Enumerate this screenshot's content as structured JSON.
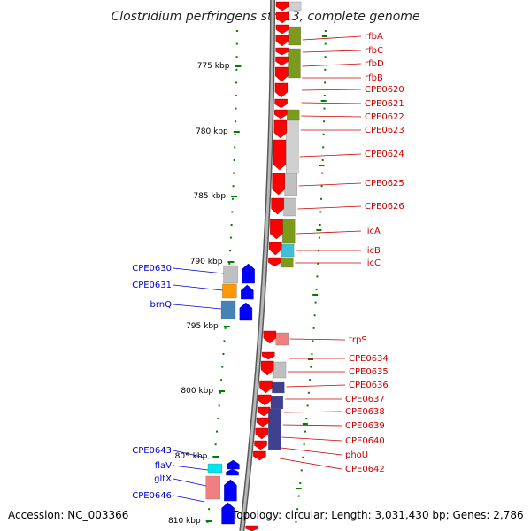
{
  "title": "Clostridium perfringens str. 13, complete genome",
  "footer": {
    "accession": "Accession: NC_003366",
    "summary": "Topology: circular; Length: 3,031,430 bp; Genes: 2,786"
  },
  "colors": {
    "forward_gene": "#ff0000",
    "reverse_gene": "#0000ff",
    "forward_label": "#cc0000",
    "reverse_label": "#0000cc",
    "tick": "#008000",
    "backbone": "#909090"
  },
  "scale_labels": [
    "775 kbp",
    "780 kbp",
    "785 kbp",
    "790 kbp",
    "795 kbp",
    "800 kbp",
    "805 kbp",
    "810 kbp"
  ],
  "forward_genes": [
    "rfbA",
    "rfbC",
    "rfbD",
    "rfbB",
    "CPE0620",
    "CPE0621",
    "CPE0622",
    "CPE0623",
    "CPE0624",
    "CPE0625",
    "CPE0626",
    "licA",
    "licB",
    "licC",
    "trpS",
    "CPE0634",
    "CPE0635",
    "CPE0636",
    "CPE0637",
    "CPE0638",
    "CPE0639",
    "CPE0640",
    "phoU",
    "CPE0642"
  ],
  "reverse_genes": [
    "CPE0630",
    "CPE0631",
    "brnQ",
    "CPE0643",
    "flaV",
    "gltX",
    "CPE0646"
  ]
}
